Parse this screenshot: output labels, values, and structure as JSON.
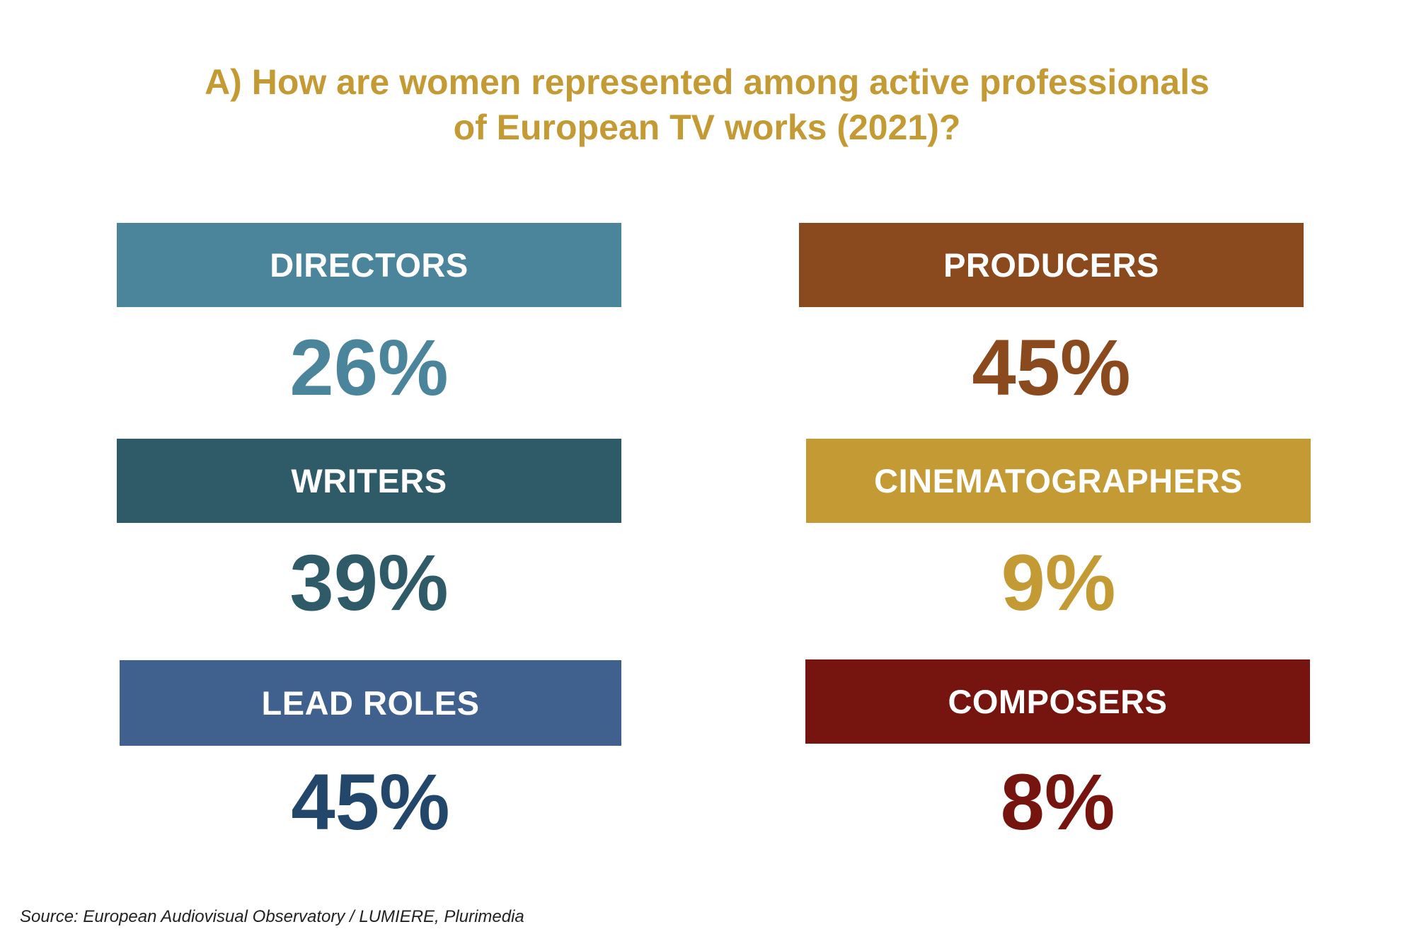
{
  "title": {
    "line1": "A) How are women represented among active professionals",
    "line2": "of European TV works (2021)?"
  },
  "chart_data": {
    "type": "table",
    "unit": "%",
    "categories": [
      "DIRECTORS",
      "PRODUCERS",
      "WRITERS",
      "CINEMATOGRAPHERS",
      "LEAD ROLES",
      "COMPOSERS"
    ],
    "values": [
      26,
      45,
      39,
      9,
      45,
      8
    ],
    "items": [
      {
        "label": "DIRECTORS",
        "value": 26,
        "display": "26%",
        "color": "#4A859B",
        "value_color": "#4A859B"
      },
      {
        "label": "PRODUCERS",
        "value": 45,
        "display": "45%",
        "color": "#8B4A1E",
        "value_color": "#8B4A1E"
      },
      {
        "label": "WRITERS",
        "value": 39,
        "display": "39%",
        "color": "#2F5A68",
        "value_color": "#2F5A68"
      },
      {
        "label": "CINEMATOGRAPHERS",
        "value": 9,
        "display": "9%",
        "color": "#C49A34",
        "value_color": "#C49A34"
      },
      {
        "label": "LEAD ROLES",
        "value": 45,
        "display": "45%",
        "color": "#40608D",
        "value_color": "#23476B"
      },
      {
        "label": "COMPOSERS",
        "value": 8,
        "display": "8%",
        "color": "#761510",
        "value_color": "#761510"
      }
    ]
  },
  "source": "Source: European Audiovisual Observatory / LUMIERE, Plurimedia"
}
